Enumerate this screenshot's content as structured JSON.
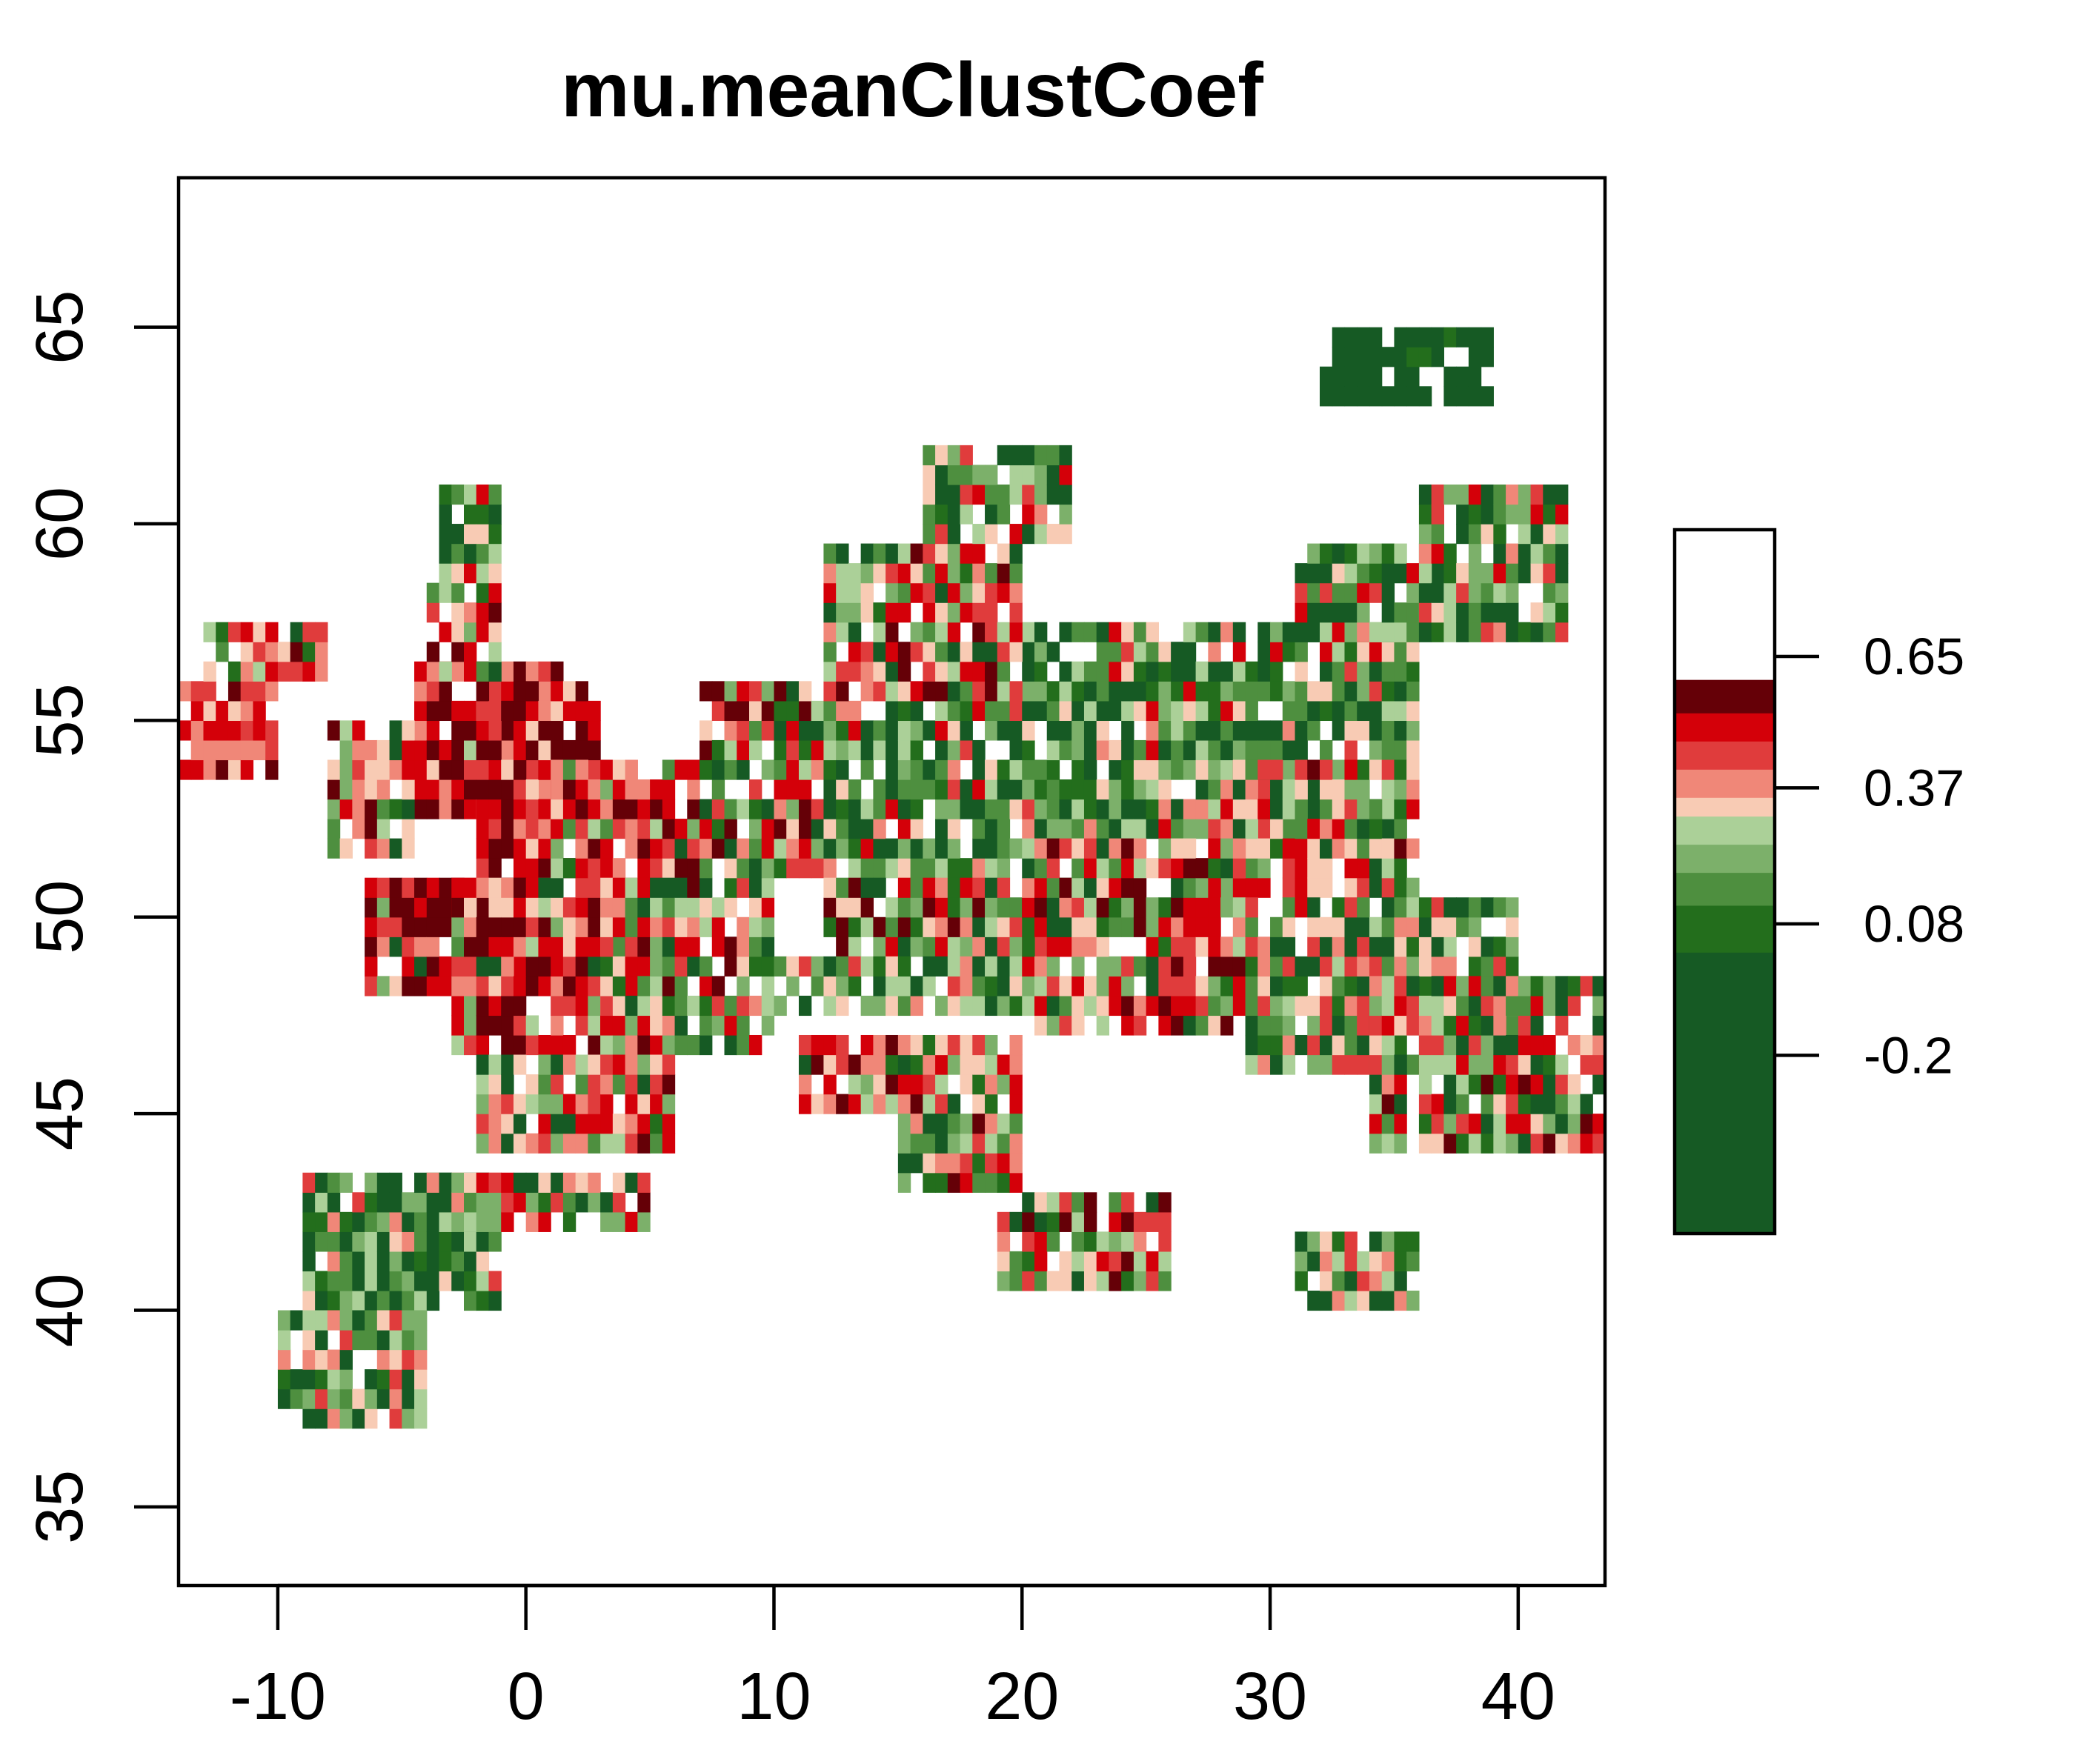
{
  "chart_data": {
    "type": "heatmap",
    "title": "mu.meanClustCoef",
    "xlabel": "",
    "ylabel": "",
    "xlim": [
      -14,
      43.5
    ],
    "ylim": [
      33,
      68.8
    ],
    "x_ticks": [
      -10,
      0,
      10,
      20,
      30,
      40
    ],
    "x_tick_labels": [
      "-10",
      "0",
      "10",
      "20",
      "30",
      "40"
    ],
    "y_ticks": [
      35,
      40,
      45,
      50,
      55,
      60,
      65
    ],
    "y_tick_labels": [
      "35",
      "40",
      "45",
      "50",
      "55",
      "60",
      "65"
    ],
    "grid": false,
    "legend": {
      "placement": "right",
      "value_range": [
        -0.58,
        0.92
      ],
      "tick_values": [
        0.65,
        0.37,
        0.08,
        -0.2
      ],
      "tick_labels": [
        "0.65",
        "0.37",
        "0.08",
        "-0.2"
      ],
      "breaks": [
        -0.58,
        0.02,
        0.12,
        0.19,
        0.25,
        0.31,
        0.35,
        0.41,
        0.47,
        0.53,
        0.6,
        0.92
      ],
      "colors": [
        "#165a24",
        "#236e1c",
        "#4e8f3f",
        "#7cb06a",
        "#abd098",
        "#f8cbb4",
        "#f08778",
        "#e03c3c",
        "#d40009",
        "#650007"
      ]
    },
    "cell_size_deg": 0.5,
    "color_bins": [
      {
        "value": -0.3,
        "color": "#165a24"
      },
      {
        "value": 0.07,
        "color": "#236e1c"
      },
      {
        "value": 0.15,
        "color": "#4e8f3f"
      },
      {
        "value": 0.22,
        "color": "#7cb06a"
      },
      {
        "value": 0.28,
        "color": "#abd098"
      },
      {
        "value": 0.33,
        "color": "#f8cbb4"
      },
      {
        "value": 0.38,
        "color": "#f08778"
      },
      {
        "value": 0.44,
        "color": "#e03c3c"
      },
      {
        "value": 0.5,
        "color": "#d40009"
      },
      {
        "value": 0.75,
        "color": "#650007"
      }
    ],
    "regions": [
      {
        "lon_range": [
          -4.5,
          1.5
        ],
        "lat_range": [
          52.5,
          56.5
        ],
        "level_weights": [
          0,
          0,
          0,
          0,
          1,
          1,
          2,
          3,
          6,
          7
        ]
      },
      {
        "lon_range": [
          -2,
          3
        ],
        "lat_range": [
          50.5,
          56
        ],
        "level_weights": [
          0,
          0,
          0,
          0,
          0,
          1,
          1,
          2,
          6,
          5
        ]
      },
      {
        "lon_range": [
          -4,
          -1
        ],
        "lat_range": [
          56,
          59
        ],
        "level_weights": [
          1,
          1,
          2,
          2,
          3,
          3,
          3,
          3,
          3,
          2
        ]
      },
      {
        "lon_range": [
          -3.5,
          -1
        ],
        "lat_range": [
          59,
          60.8
        ],
        "level_weights": [
          4,
          2,
          3,
          2,
          2,
          2,
          1,
          1,
          1,
          0
        ]
      },
      {
        "lon_range": [
          -8,
          -4.5
        ],
        "lat_range": [
          51.5,
          55
        ],
        "level_weights": [
          2,
          1,
          2,
          2,
          2,
          4,
          3,
          3,
          3,
          1
        ]
      },
      {
        "lon_range": [
          -14,
          -10
        ],
        "lat_range": [
          53.5,
          56
        ],
        "level_weights": [
          0,
          0,
          0,
          0,
          1,
          2,
          3,
          3,
          6,
          2
        ]
      },
      {
        "lon_range": [
          -13,
          -8
        ],
        "lat_range": [
          56,
          57.5
        ],
        "level_weights": [
          1,
          1,
          1,
          1,
          2,
          2,
          3,
          3,
          4,
          2
        ]
      },
      {
        "lon_range": [
          -6.5,
          1
        ],
        "lat_range": [
          48,
          51
        ],
        "level_weights": [
          1,
          0,
          0,
          1,
          1,
          1,
          2,
          3,
          5,
          8
        ]
      },
      {
        "lon_range": [
          -3,
          5
        ],
        "lat_range": [
          46.5,
          51
        ],
        "level_weights": [
          1,
          0,
          1,
          1,
          1,
          2,
          2,
          3,
          5,
          7
        ]
      },
      {
        "lon_range": [
          1,
          7
        ],
        "lat_range": [
          51,
          54
        ],
        "level_weights": [
          2,
          1,
          2,
          2,
          2,
          2,
          3,
          3,
          5,
          4
        ]
      },
      {
        "lon_range": [
          3,
          10
        ],
        "lat_range": [
          46.5,
          51
        ],
        "level_weights": [
          3,
          2,
          3,
          3,
          3,
          3,
          2,
          2,
          3,
          2
        ]
      },
      {
        "lon_range": [
          -2,
          6
        ],
        "lat_range": [
          44,
          46.5
        ],
        "level_weights": [
          2,
          1,
          2,
          2,
          2,
          3,
          3,
          3,
          4,
          1
        ]
      },
      {
        "lon_range": [
          7,
          12
        ],
        "lat_range": [
          51,
          56
        ],
        "level_weights": [
          3,
          2,
          3,
          2,
          2,
          2,
          2,
          3,
          4,
          3
        ]
      },
      {
        "lon_range": [
          12,
          20
        ],
        "lat_range": [
          51,
          55.5
        ],
        "level_weights": [
          7,
          3,
          3,
          2,
          2,
          2,
          1,
          1,
          1,
          0
        ]
      },
      {
        "lon_range": [
          12,
          22
        ],
        "lat_range": [
          49,
          51
        ],
        "level_weights": [
          3,
          2,
          2,
          2,
          2,
          2,
          2,
          3,
          4,
          2
        ]
      },
      {
        "lon_range": [
          10,
          20
        ],
        "lat_range": [
          47.5,
          49
        ],
        "level_weights": [
          3,
          2,
          3,
          3,
          3,
          2,
          1,
          1,
          1,
          0
        ]
      },
      {
        "lon_range": [
          20,
          36
        ],
        "lat_range": [
          52,
          57.5
        ],
        "level_weights": [
          6,
          3,
          4,
          3,
          3,
          2,
          1,
          1,
          1,
          0
        ]
      },
      {
        "lon_range": [
          28,
          36
        ],
        "lat_range": [
          50.5,
          54
        ],
        "level_weights": [
          2,
          1,
          2,
          2,
          2,
          3,
          2,
          3,
          4,
          1
        ]
      },
      {
        "lon_range": [
          20,
          29
        ],
        "lat_range": [
          47,
          52
        ],
        "level_weights": [
          2,
          1,
          2,
          2,
          2,
          3,
          2,
          3,
          4,
          2
        ]
      },
      {
        "lon_range": [
          29,
          40
        ],
        "lat_range": [
          46,
          50.5
        ],
        "level_weights": [
          4,
          2,
          3,
          2,
          2,
          2,
          2,
          2,
          1,
          0
        ]
      },
      {
        "lon_range": [
          34,
          43.5
        ],
        "lat_range": [
          44,
          48.5
        ],
        "level_weights": [
          3,
          1,
          2,
          2,
          2,
          2,
          2,
          3,
          3,
          1
        ]
      },
      {
        "lon_range": [
          12,
          20
        ],
        "lat_range": [
          55.5,
          59.5
        ],
        "level_weights": [
          2,
          1,
          2,
          2,
          2,
          3,
          2,
          3,
          3,
          2
        ]
      },
      {
        "lon_range": [
          16,
          22
        ],
        "lat_range": [
          59.5,
          62
        ],
        "level_weights": [
          5,
          1,
          3,
          3,
          3,
          2,
          1,
          1,
          1,
          0
        ]
      },
      {
        "lon_range": [
          31,
          37
        ],
        "lat_range": [
          57,
          59.5
        ],
        "level_weights": [
          6,
          2,
          3,
          2,
          2,
          1,
          1,
          1,
          1,
          0
        ]
      },
      {
        "lon_range": [
          11,
          20
        ],
        "lat_range": [
          45,
          47
        ],
        "level_weights": [
          1,
          1,
          1,
          1,
          2,
          3,
          3,
          3,
          4,
          2
        ]
      },
      {
        "lon_range": [
          15,
          20
        ],
        "lat_range": [
          43,
          45
        ],
        "level_weights": [
          3,
          2,
          3,
          3,
          2,
          2,
          2,
          2,
          3,
          1
        ]
      },
      {
        "lon_range": [
          19,
          26
        ],
        "lat_range": [
          40.5,
          43
        ],
        "level_weights": [
          3,
          1,
          2,
          2,
          2,
          2,
          2,
          3,
          4,
          2
        ]
      },
      {
        "lon_range": [
          -9,
          -1
        ],
        "lat_range": [
          40,
          43.5
        ],
        "level_weights": [
          8,
          2,
          3,
          2,
          2,
          1,
          1,
          1,
          0,
          0
        ]
      },
      {
        "lon_range": [
          -10,
          -4
        ],
        "lat_range": [
          37,
          40
        ],
        "level_weights": [
          4,
          2,
          3,
          3,
          2,
          2,
          2,
          2,
          1,
          0
        ]
      },
      {
        "lon_range": [
          -4,
          5
        ],
        "lat_range": [
          42,
          43.5
        ],
        "level_weights": [
          3,
          1,
          2,
          2,
          2,
          2,
          2,
          2,
          3,
          1
        ]
      },
      {
        "lon_range": [
          31,
          36
        ],
        "lat_range": [
          40,
          42
        ],
        "level_weights": [
          6,
          2,
          3,
          2,
          2,
          2,
          1,
          1,
          0,
          0
        ]
      },
      {
        "lon_range": [
          32,
          39
        ],
        "lat_range": [
          63,
          65
        ],
        "level_weights": [
          9,
          1,
          1,
          0,
          0,
          0,
          0,
          0,
          0,
          0
        ]
      },
      {
        "lon_range": [
          36,
          42
        ],
        "lat_range": [
          57,
          61
        ],
        "level_weights": [
          5,
          2,
          3,
          2,
          2,
          2,
          1,
          2,
          1,
          0
        ]
      }
    ]
  }
}
